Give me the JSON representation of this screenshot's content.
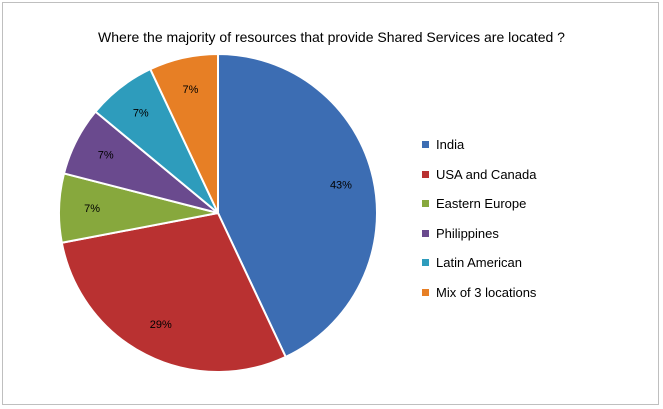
{
  "chart_data": {
    "type": "pie",
    "title": "Where the majority of resources that provide Shared Services are located ?",
    "categories": [
      "India",
      "USA and Canada",
      "Eastern Europe",
      "Philippines",
      "Latin American",
      "Mix of 3 locations"
    ],
    "values": [
      43,
      29,
      7,
      7,
      7,
      7
    ],
    "data_labels": [
      "43%",
      "29%",
      "7%",
      "7%",
      "7%",
      "7%"
    ],
    "colors": [
      "#3c6db3",
      "#b93131",
      "#87a83d",
      "#6a4a8e",
      "#2e9cbc",
      "#e77f25"
    ],
    "legend_position": "right"
  }
}
